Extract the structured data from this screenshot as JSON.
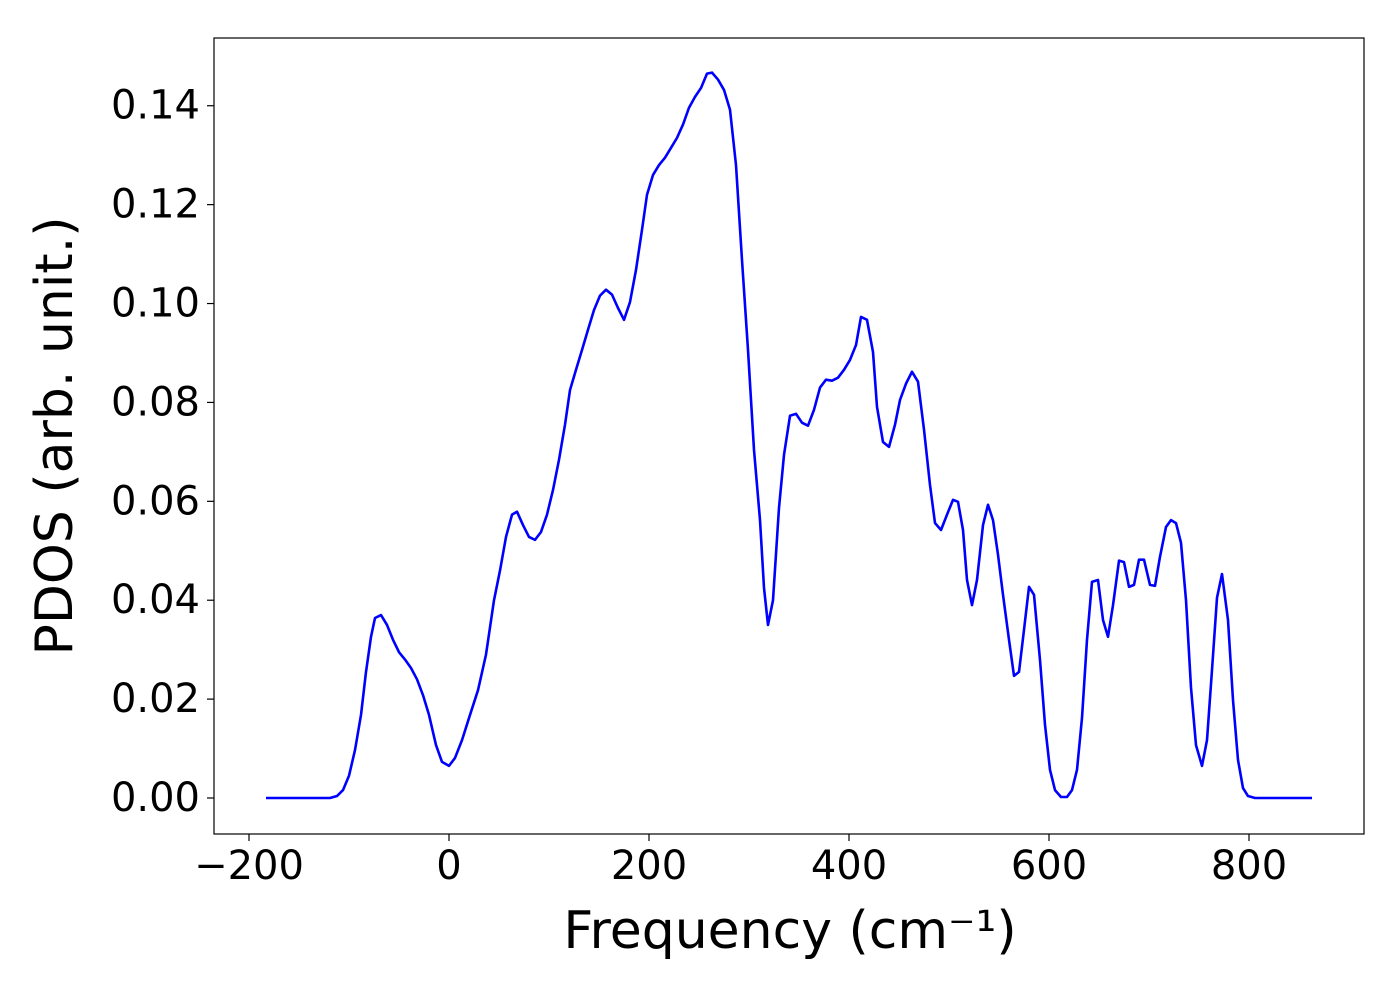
{
  "chart_data": {
    "type": "line",
    "xlabel": "Frequency (cm⁻¹)",
    "ylabel": "PDOS (arb. unit.)",
    "color": "#0000ff",
    "xlim": [
      -235,
      915
    ],
    "ylim": [
      -0.00728,
      0.1537
    ],
    "xticks": [
      {
        "value": -200,
        "label": "−200"
      },
      0,
      200,
      400,
      600,
      800
    ],
    "yticks": [
      {
        "value": 0,
        "label": "0.00"
      },
      {
        "value": 0.02,
        "label": "0.02"
      },
      {
        "value": 0.04,
        "label": "0.04"
      },
      {
        "value": 0.06,
        "label": "0.06"
      },
      {
        "value": 0.08,
        "label": "0.08"
      },
      {
        "value": 0.1,
        "label": "0.10"
      },
      {
        "value": 0.12,
        "label": "0.12"
      },
      {
        "value": 0.14,
        "label": "0.14"
      }
    ],
    "x": [
      -183,
      -119,
      -112,
      -106,
      -100,
      -94,
      -88,
      -83,
      -78,
      -74,
      -68,
      -62,
      -56,
      -50,
      -44,
      -38,
      -32,
      -26,
      -20,
      -13,
      -7,
      0,
      6,
      13,
      21,
      29,
      37,
      45,
      51,
      57,
      63,
      68,
      74,
      80,
      86,
      92,
      98,
      104,
      110,
      116,
      121,
      127,
      133,
      139,
      145,
      151,
      157,
      163,
      169,
      175,
      181,
      187,
      193,
      198,
      204,
      210,
      216,
      222,
      228,
      234,
      240,
      246,
      252,
      258,
      263,
      269,
      275,
      281,
      287,
      293,
      299,
      305,
      311,
      315,
      319,
      324,
      330,
      335,
      341,
      347,
      353,
      359,
      365,
      371,
      377,
      383,
      389,
      395,
      401,
      407,
      412,
      418,
      424,
      428,
      434,
      440,
      446,
      451,
      457,
      463,
      469,
      475,
      481,
      486,
      492,
      498,
      504,
      509,
      514,
      518,
      523,
      528,
      534,
      539,
      544,
      549,
      554,
      560,
      565,
      570,
      575,
      580,
      585,
      591,
      596,
      601,
      606,
      612,
      618,
      623,
      628,
      633,
      638,
      643,
      649,
      654,
      659,
      664,
      670,
      675,
      680,
      685,
      690,
      695,
      701,
      706,
      711,
      717,
      722,
      727,
      732,
      737,
      742,
      747,
      753,
      758,
      763,
      768,
      773,
      779,
      784,
      789,
      794,
      799,
      806,
      863
    ],
    "y": [
      0,
      0,
      0.0004,
      0.0016,
      0.0045,
      0.0097,
      0.0168,
      0.0255,
      0.0326,
      0.0364,
      0.037,
      0.035,
      0.032,
      0.0295,
      0.028,
      0.0263,
      0.024,
      0.0208,
      0.0168,
      0.0107,
      0.0073,
      0.0065,
      0.0081,
      0.0117,
      0.0168,
      0.0218,
      0.029,
      0.04,
      0.046,
      0.0528,
      0.0573,
      0.0579,
      0.0552,
      0.0528,
      0.0522,
      0.0538,
      0.0573,
      0.0623,
      0.0684,
      0.0755,
      0.0825,
      0.0866,
      0.0906,
      0.0947,
      0.0987,
      0.1016,
      0.1028,
      0.1018,
      0.0991,
      0.0967,
      0.1003,
      0.1068,
      0.1149,
      0.122,
      0.126,
      0.128,
      0.1295,
      0.1315,
      0.1335,
      0.1362,
      0.1396,
      0.1418,
      0.1436,
      0.1465,
      0.1467,
      0.1453,
      0.1432,
      0.1392,
      0.128,
      0.1088,
      0.0906,
      0.0704,
      0.0562,
      0.0425,
      0.035,
      0.04,
      0.0587,
      0.0694,
      0.0773,
      0.0777,
      0.0759,
      0.0753,
      0.0785,
      0.083,
      0.0846,
      0.0844,
      0.085,
      0.0866,
      0.0886,
      0.0916,
      0.0973,
      0.0967,
      0.0902,
      0.0791,
      0.072,
      0.071,
      0.0755,
      0.0805,
      0.0838,
      0.0862,
      0.0842,
      0.0745,
      0.0633,
      0.0556,
      0.0542,
      0.0573,
      0.0603,
      0.0599,
      0.0542,
      0.0441,
      0.039,
      0.0441,
      0.0552,
      0.0593,
      0.0562,
      0.0492,
      0.0411,
      0.032,
      0.0247,
      0.0255,
      0.034,
      0.0427,
      0.0411,
      0.0279,
      0.0148,
      0.0057,
      0.0016,
      0.0002,
      0.0002,
      0.0016,
      0.0057,
      0.0162,
      0.032,
      0.0437,
      0.0441,
      0.036,
      0.0326,
      0.039,
      0.048,
      0.0477,
      0.0427,
      0.0431,
      0.0482,
      0.0482,
      0.0431,
      0.0429,
      0.0488,
      0.0548,
      0.0562,
      0.0556,
      0.0516,
      0.04,
      0.0223,
      0.0107,
      0.0065,
      0.0117,
      0.0259,
      0.0405,
      0.0453,
      0.036,
      0.0198,
      0.0077,
      0.002,
      0.0004,
      0,
      0
    ]
  }
}
